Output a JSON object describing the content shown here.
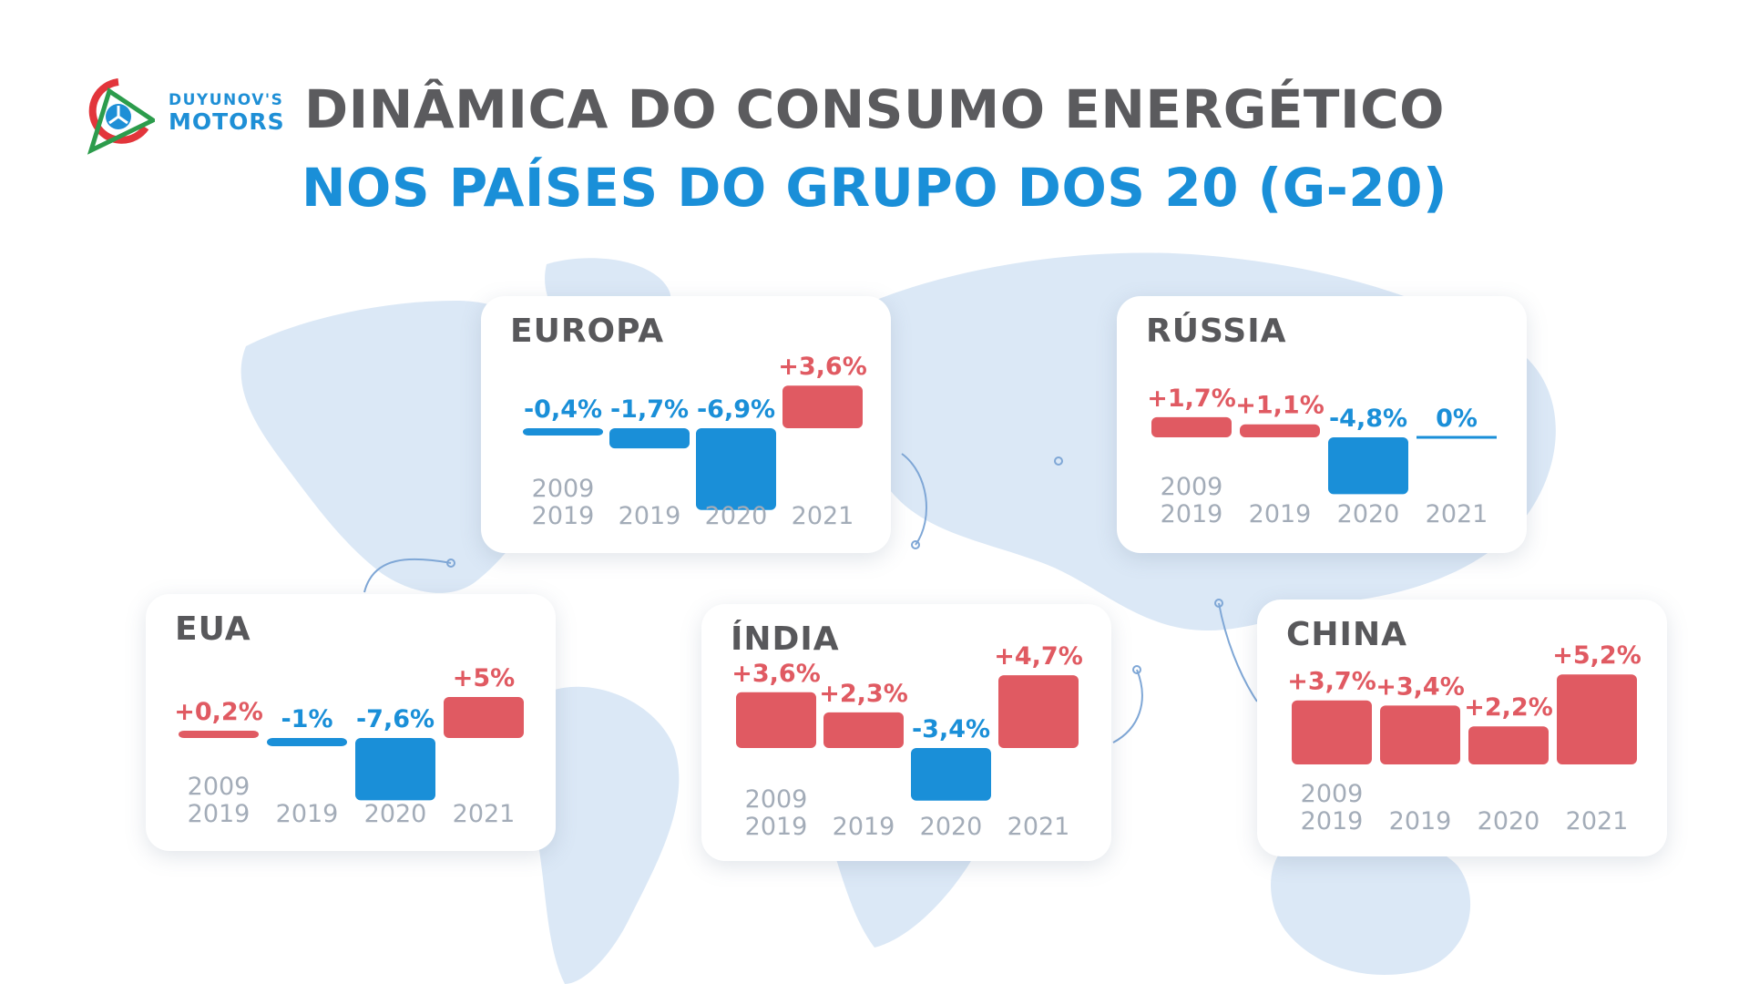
{
  "header": {
    "title_line1": "DINÂMICA DO CONSUMO ENERGÉTICO",
    "title_line2": "NOS PAÍSES DO GRUPO DOS 20 (G-20)"
  },
  "logo": {
    "line1": "DUYUNOV'S",
    "line2": "MOTORS"
  },
  "colors": {
    "positive": "#e05a62",
    "negative": "#1a8fd8",
    "title": "#5b5b5e",
    "accent": "#1a8fd8",
    "map": "#cfe0f3"
  },
  "chart_data": [
    {
      "type": "bar",
      "title": "EUROPA",
      "categories": [
        [
          "2009",
          "2019"
        ],
        "2019",
        "2020",
        "2021"
      ],
      "values": [
        -0.4,
        -1.7,
        -6.9,
        3.6
      ],
      "labels": [
        "-0,4%",
        "-1,7%",
        "-6,9%",
        "+3,6%"
      ]
    },
    {
      "type": "bar",
      "title": "RÚSSIA",
      "categories": [
        [
          "2009",
          "2019"
        ],
        "2019",
        "2020",
        "2021"
      ],
      "values": [
        1.7,
        1.1,
        -4.8,
        0
      ],
      "labels": [
        "+1,7%",
        "+1,1%",
        "-4,8%",
        "0%"
      ]
    },
    {
      "type": "bar",
      "title": "EUA",
      "categories": [
        [
          "2009",
          "2019"
        ],
        "2019",
        "2020",
        "2021"
      ],
      "values": [
        0.2,
        -1,
        -7.6,
        5
      ],
      "labels": [
        "+0,2%",
        "-1%",
        "-7,6%",
        "+5%"
      ]
    },
    {
      "type": "bar",
      "title": "ÍNDIA",
      "categories": [
        [
          "2009",
          "2019"
        ],
        "2019",
        "2020",
        "2021"
      ],
      "values": [
        3.6,
        2.3,
        -3.4,
        4.7
      ],
      "labels": [
        "+3,6%",
        "+2,3%",
        "-3,4%",
        "+4,7%"
      ]
    },
    {
      "type": "bar",
      "title": "CHINA",
      "categories": [
        [
          "2009",
          "2019"
        ],
        "2019",
        "2020",
        "2021"
      ],
      "values": [
        3.7,
        3.4,
        2.2,
        5.2
      ],
      "labels": [
        "+3,7%",
        "+3,4%",
        "+2,2%",
        "+5,2%"
      ]
    }
  ]
}
